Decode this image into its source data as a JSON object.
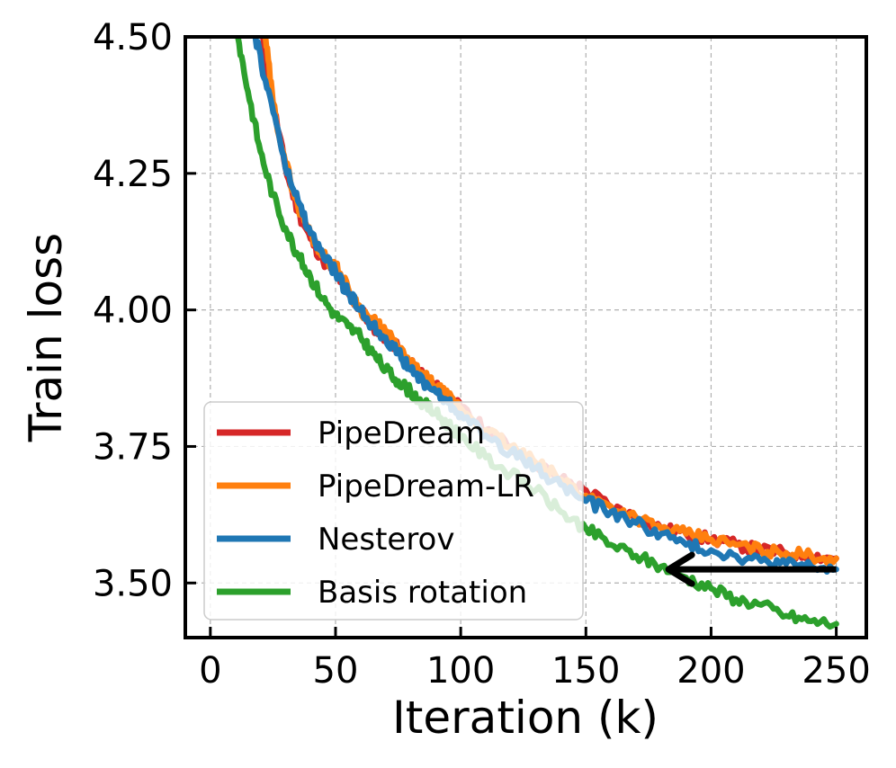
{
  "chart_data": {
    "type": "line",
    "title": "",
    "xlabel": "Iteration (k)",
    "ylabel": "Train loss",
    "xlim": [
      -10,
      262
    ],
    "ylim": [
      3.4,
      4.5
    ],
    "xticks": [
      0,
      50,
      100,
      150,
      200,
      250
    ],
    "yticks": [
      3.5,
      3.75,
      4.0,
      4.25,
      4.5
    ],
    "ytick_labels": [
      "3.50",
      "3.75",
      "4.00",
      "4.25",
      "4.50"
    ],
    "grid": true,
    "legend_position": "lower-left",
    "series": [
      {
        "name": "PipeDream",
        "color": "#d62728",
        "x": [
          20,
          25,
          30,
          35,
          40,
          45,
          50,
          55,
          60,
          65,
          70,
          75,
          80,
          85,
          90,
          95,
          100,
          110,
          120,
          130,
          140,
          150,
          160,
          170,
          180,
          190,
          200,
          210,
          220,
          230,
          240,
          250
        ],
        "y": [
          4.52,
          4.38,
          4.26,
          4.18,
          4.13,
          4.09,
          4.07,
          4.03,
          4.0,
          3.97,
          3.95,
          3.93,
          3.9,
          3.88,
          3.86,
          3.84,
          3.82,
          3.78,
          3.75,
          3.72,
          3.69,
          3.67,
          3.64,
          3.62,
          3.6,
          3.59,
          3.58,
          3.57,
          3.56,
          3.555,
          3.55,
          3.545
        ]
      },
      {
        "name": "PipeDream-LR",
        "color": "#ff7f0e",
        "x": [
          22,
          25,
          30,
          35,
          40,
          45,
          50,
          55,
          60,
          65,
          70,
          75,
          80,
          85,
          90,
          95,
          100,
          110,
          120,
          130,
          140,
          150,
          160,
          170,
          180,
          190,
          200,
          210,
          220,
          230,
          240,
          250
        ],
        "y": [
          4.5,
          4.38,
          4.27,
          4.19,
          4.14,
          4.1,
          4.08,
          4.04,
          4.0,
          3.98,
          3.96,
          3.93,
          3.9,
          3.88,
          3.86,
          3.84,
          3.82,
          3.78,
          3.75,
          3.72,
          3.69,
          3.66,
          3.64,
          3.62,
          3.6,
          3.59,
          3.58,
          3.57,
          3.56,
          3.555,
          3.55,
          3.545
        ]
      },
      {
        "name": "Nesterov",
        "color": "#1f77b4",
        "x": [
          18,
          22,
          27,
          30,
          35,
          40,
          45,
          50,
          55,
          60,
          65,
          70,
          75,
          80,
          85,
          90,
          95,
          100,
          110,
          120,
          130,
          140,
          150,
          160,
          170,
          180,
          190,
          200,
          210,
          220,
          230,
          240,
          250
        ],
        "y": [
          4.5,
          4.42,
          4.33,
          4.26,
          4.2,
          4.14,
          4.1,
          4.07,
          4.03,
          4.0,
          3.97,
          3.95,
          3.92,
          3.89,
          3.87,
          3.85,
          3.83,
          3.81,
          3.77,
          3.74,
          3.71,
          3.68,
          3.65,
          3.63,
          3.61,
          3.59,
          3.57,
          3.56,
          3.55,
          3.54,
          3.535,
          3.53,
          3.525
        ]
      },
      {
        "name": "Basis rotation",
        "color": "#2ca02c",
        "x": [
          11,
          15,
          20,
          25,
          30,
          35,
          40,
          45,
          50,
          55,
          60,
          65,
          70,
          75,
          80,
          85,
          90,
          95,
          100,
          110,
          120,
          130,
          140,
          150,
          160,
          170,
          180,
          190,
          200,
          210,
          220,
          230,
          240,
          250
        ],
        "y": [
          4.5,
          4.4,
          4.29,
          4.21,
          4.15,
          4.1,
          4.06,
          4.02,
          3.99,
          3.97,
          3.95,
          3.92,
          3.89,
          3.87,
          3.85,
          3.83,
          3.81,
          3.79,
          3.77,
          3.73,
          3.7,
          3.67,
          3.63,
          3.6,
          3.57,
          3.55,
          3.53,
          3.51,
          3.49,
          3.47,
          3.46,
          3.44,
          3.43,
          3.425
        ]
      }
    ],
    "annotations": [
      {
        "type": "arrow",
        "from": [
          250,
          3.525
        ],
        "to": [
          183,
          3.525
        ],
        "color": "#000000"
      }
    ]
  }
}
